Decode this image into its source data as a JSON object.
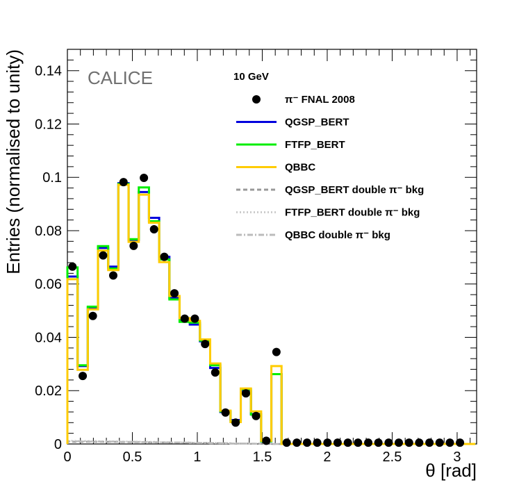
{
  "chart_data": {
    "type": "histogram",
    "xlabel": "θ [rad]",
    "ylabel": "Entries (normalised to unity)",
    "xlim": [
      0,
      3.15
    ],
    "ylim": [
      0,
      0.148
    ],
    "x_ticks": [
      "0",
      "0.5",
      "1",
      "1.5",
      "2",
      "2.5",
      "3"
    ],
    "x_tick_values": [
      0,
      0.5,
      1,
      1.5,
      2,
      2.5,
      3
    ],
    "y_ticks": [
      "0",
      "0.02",
      "0.04",
      "0.06",
      "0.08",
      "0.1",
      "0.12",
      "0.14"
    ],
    "y_tick_values": [
      0,
      0.02,
      0.04,
      0.06,
      0.08,
      0.1,
      0.12,
      0.14
    ],
    "watermark": "CALICE",
    "energy_label": "10 GeV",
    "bin_edges": [
      0,
      0.0785,
      0.157,
      0.2355,
      0.314,
      0.3925,
      0.471,
      0.5495,
      0.628,
      0.7065,
      0.785,
      0.8635,
      0.942,
      1.0205,
      1.099,
      1.1775,
      1.256,
      1.3345,
      1.413,
      1.4915,
      1.57,
      1.6485,
      1.727,
      1.8055,
      1.884,
      1.9625,
      2.041,
      2.1195,
      2.198,
      2.2765,
      2.355,
      2.4335,
      2.512,
      2.5905,
      2.669,
      2.7475,
      2.826,
      2.9045,
      2.983,
      3.0615,
      3.14
    ],
    "data_points": {
      "name": "π⁻ FNAL 2008",
      "x": [
        0.039,
        0.118,
        0.196,
        0.275,
        0.353,
        0.432,
        0.51,
        0.589,
        0.667,
        0.746,
        0.824,
        0.903,
        0.981,
        1.06,
        1.138,
        1.217,
        1.295,
        1.374,
        1.452,
        1.531,
        1.609,
        1.688,
        1.766,
        1.845,
        1.923,
        2.002,
        2.08,
        2.159,
        2.237,
        2.316,
        2.394,
        2.473,
        2.551,
        2.63,
        2.708,
        2.787,
        2.865,
        2.944,
        3.022
      ],
      "y": [
        0.0665,
        0.0255,
        0.048,
        0.0707,
        0.0632,
        0.0982,
        0.0743,
        0.0998,
        0.0805,
        0.0702,
        0.0565,
        0.047,
        0.047,
        0.0375,
        0.0268,
        0.0118,
        0.008,
        0.019,
        0.0105,
        0.0012,
        0.0345,
        0.0005,
        0.0005,
        0.0005,
        0.0005,
        0.0005,
        0.0005,
        0.0005,
        0.0005,
        0.0005,
        0.0005,
        0.0005,
        0.0005,
        0.0005,
        0.0005,
        0.0005,
        0.0005,
        0.0005,
        0.0005
      ]
    },
    "series": [
      {
        "name": "QGSP_BERT",
        "color": "#0000dd",
        "style": "solid",
        "values": [
          0.0628,
          0.0292,
          0.0512,
          0.0735,
          0.0665,
          0.0978,
          0.0765,
          0.0945,
          0.0848,
          0.0702,
          0.0548,
          0.0462,
          0.0448,
          0.0385,
          0.0285,
          0.012,
          0.009,
          0.0198,
          0.0112,
          0.001,
          0.0262,
          0,
          0,
          0,
          0,
          0,
          0,
          0,
          0,
          0,
          0,
          0,
          0,
          0,
          0,
          0,
          0,
          0,
          0,
          0
        ]
      },
      {
        "name": "FTFP_BERT",
        "color": "#00ee00",
        "style": "solid",
        "values": [
          0.0662,
          0.0295,
          0.0515,
          0.0742,
          0.0658,
          0.0975,
          0.0768,
          0.0962,
          0.0835,
          0.0692,
          0.0542,
          0.0458,
          0.0455,
          0.0388,
          0.0295,
          0.0122,
          0.0085,
          0.0205,
          0.011,
          0.001,
          0.0262,
          0,
          0,
          0,
          0,
          0,
          0,
          0,
          0,
          0,
          0,
          0,
          0,
          0,
          0,
          0,
          0,
          0,
          0,
          0
        ]
      },
      {
        "name": "QBBC",
        "color": "#ffcc00",
        "style": "solid",
        "values": [
          0.0618,
          0.0278,
          0.0505,
          0.0725,
          0.0652,
          0.0972,
          0.0758,
          0.0935,
          0.083,
          0.0682,
          0.0555,
          0.0472,
          0.0462,
          0.0392,
          0.0302,
          0.0125,
          0.0082,
          0.0208,
          0.0122,
          0.0012,
          0.0292,
          0,
          0,
          0,
          0,
          0,
          0,
          0,
          0,
          0,
          0,
          0,
          0,
          0,
          0,
          0,
          0,
          0,
          0,
          0
        ]
      },
      {
        "name": "QGSP_BERT double π⁻ bkg",
        "color": "#999999",
        "style": "dashed",
        "values": [
          0.0008,
          0.0008,
          0.0008,
          0.0008,
          0.0008,
          0.0007,
          0.0007,
          0.0007,
          0.0006,
          0.0006,
          0.0005,
          0.0005,
          0.0004,
          0.0004,
          0.0003,
          0.0003,
          0.0002,
          0.0002,
          0.0001,
          0.0001,
          0,
          0,
          0,
          0,
          0,
          0,
          0,
          0,
          0,
          0,
          0,
          0,
          0,
          0,
          0,
          0,
          0,
          0,
          0,
          0
        ]
      },
      {
        "name": "FTFP_BERT double π⁻ bkg",
        "color": "#cccccc",
        "style": "dotted",
        "values": [
          0.0012,
          0.0011,
          0.0011,
          0.001,
          0.001,
          0.0009,
          0.0009,
          0.0008,
          0.0008,
          0.0007,
          0.0006,
          0.0006,
          0.0005,
          0.0004,
          0.0004,
          0.0003,
          0.0002,
          0.0002,
          0.0001,
          0.0001,
          0,
          0,
          0,
          0,
          0,
          0,
          0,
          0,
          0,
          0,
          0,
          0,
          0,
          0,
          0,
          0,
          0,
          0,
          0,
          0
        ]
      },
      {
        "name": "QBBC double π⁻ bkg",
        "color": "#bbbbbb",
        "style": "dashdot",
        "values": [
          0.001,
          0.001,
          0.0009,
          0.0009,
          0.0009,
          0.0008,
          0.0008,
          0.0007,
          0.0007,
          0.0006,
          0.0006,
          0.0005,
          0.0004,
          0.0004,
          0.0003,
          0.0003,
          0.0002,
          0.0002,
          0.0001,
          0.0001,
          0,
          0,
          0,
          0,
          0,
          0,
          0,
          0,
          0,
          0,
          0,
          0,
          0,
          0,
          0,
          0,
          0,
          0,
          0,
          0
        ]
      }
    ],
    "legend_placement": "top-right"
  }
}
